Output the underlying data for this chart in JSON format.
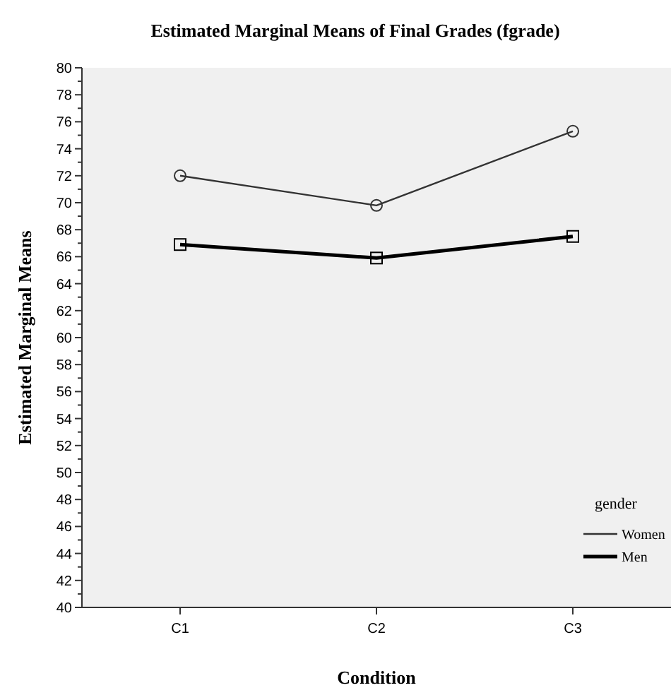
{
  "chart_data": {
    "type": "line",
    "title": "Estimated Marginal Means of Final Grades (fgrade)",
    "xlabel": "Condition",
    "ylabel": "Estimated Marginal Means",
    "legend_title": "gender",
    "categories": [
      "C1",
      "C2",
      "C3"
    ],
    "series": [
      {
        "name": "Women",
        "color": "#333333",
        "marker": "circle",
        "values": [
          72.0,
          69.8,
          75.3
        ]
      },
      {
        "name": "Men",
        "color": "#000000",
        "marker": "square",
        "values": [
          66.9,
          65.9,
          67.5
        ]
      }
    ],
    "ylim": [
      40,
      80
    ],
    "yticks": [
      40,
      {
        "value": 41,
        "label": null
      },
      42,
      {
        "value": 43,
        "label": null
      },
      44,
      {
        "value": 45,
        "label": null
      },
      46,
      {
        "value": 47,
        "label": null
      },
      48,
      {
        "value": 49,
        "label": null
      },
      50,
      {
        "value": 51,
        "label": null
      },
      52,
      {
        "value": 53,
        "label": null
      },
      54,
      {
        "value": 55,
        "label": null
      },
      56,
      {
        "value": 57,
        "label": null
      },
      58,
      {
        "value": 59,
        "label": null
      },
      60,
      {
        "value": 61,
        "label": null
      },
      62,
      {
        "value": 63,
        "label": null
      },
      64,
      {
        "value": 65,
        "label": null
      },
      66,
      {
        "value": 67,
        "label": null
      },
      68,
      {
        "value": 69,
        "label": null
      },
      70,
      {
        "value": 71,
        "label": null
      },
      72,
      {
        "value": 73,
        "label": null
      },
      74,
      {
        "value": 75,
        "label": null
      },
      76,
      {
        "value": 77,
        "label": null
      },
      78,
      {
        "value": 79,
        "label": null
      },
      80
    ],
    "grid": false,
    "legend": "bottom right",
    "line_style": "solid"
  }
}
